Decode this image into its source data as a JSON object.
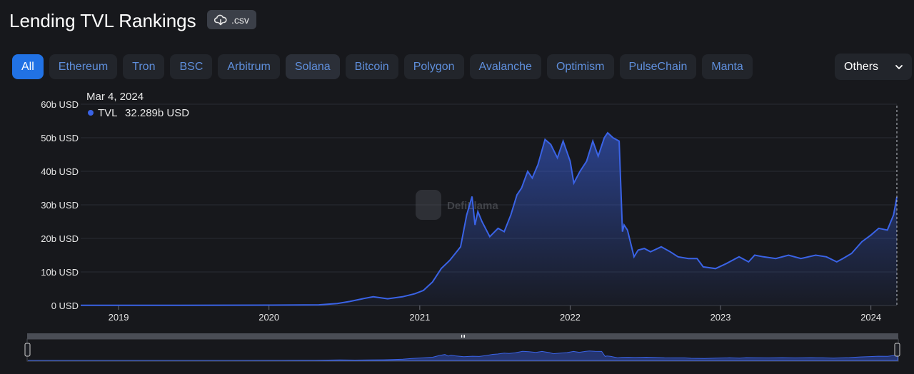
{
  "header": {
    "title": "Lending TVL Rankings",
    "csv_label": ".csv"
  },
  "chains": [
    {
      "label": "All",
      "active": true
    },
    {
      "label": "Ethereum"
    },
    {
      "label": "Tron"
    },
    {
      "label": "BSC"
    },
    {
      "label": "Arbitrum"
    },
    {
      "label": "Solana",
      "alt": true
    },
    {
      "label": "Bitcoin"
    },
    {
      "label": "Polygon"
    },
    {
      "label": "Avalanche"
    },
    {
      "label": "Optimism"
    },
    {
      "label": "PulseChain"
    },
    {
      "label": "Manta"
    }
  ],
  "others_label": "Others",
  "tooltip": {
    "date": "Mar 4, 2024",
    "series": "TVL",
    "value": "32.289b USD"
  },
  "watermark": "DefiLlama",
  "colors": {
    "line": "#3a63e6",
    "accent": "#2172e5",
    "background": "#17181c"
  },
  "chart_data": {
    "type": "area",
    "series": [
      {
        "name": "TVL",
        "x": [
          "2018-10-01",
          "2019-06-01",
          "2020-01-01",
          "2020-05-01",
          "2020-06-15",
          "2020-07-15",
          "2020-08-15",
          "2020-09-10",
          "2020-10-15",
          "2020-11-20",
          "2020-12-20",
          "2021-01-10",
          "2021-02-01",
          "2021-02-22",
          "2021-03-15",
          "2021-04-10",
          "2021-04-25",
          "2021-05-08",
          "2021-05-15",
          "2021-05-22",
          "2021-06-01",
          "2021-06-20",
          "2021-07-10",
          "2021-07-25",
          "2021-08-10",
          "2021-08-25",
          "2021-09-05",
          "2021-09-20",
          "2021-10-01",
          "2021-10-15",
          "2021-11-01",
          "2021-11-15",
          "2021-12-01",
          "2021-12-15",
          "2022-01-01",
          "2022-01-10",
          "2022-01-25",
          "2022-02-10",
          "2022-02-25",
          "2022-03-10",
          "2022-03-25",
          "2022-04-02",
          "2022-04-15",
          "2022-04-30",
          "2022-05-08",
          "2022-05-12",
          "2022-05-20",
          "2022-06-05",
          "2022-06-15",
          "2022-06-30",
          "2022-07-15",
          "2022-08-10",
          "2022-09-01",
          "2022-09-20",
          "2022-10-15",
          "2022-11-05",
          "2022-11-20",
          "2022-12-20",
          "2023-01-15",
          "2023-02-15",
          "2023-03-10",
          "2023-03-25",
          "2023-04-15",
          "2023-05-15",
          "2023-06-15",
          "2023-07-15",
          "2023-08-20",
          "2023-09-15",
          "2023-10-10",
          "2023-10-25",
          "2023-11-15",
          "2023-12-10",
          "2024-01-01",
          "2024-01-20",
          "2024-02-10",
          "2024-02-25",
          "2024-03-04"
        ],
        "values": [
          0.05,
          0.07,
          0.1,
          0.2,
          0.6,
          1.2,
          2.0,
          2.6,
          2.0,
          2.6,
          3.5,
          4.5,
          7.0,
          11.0,
          13.5,
          17.5,
          27.0,
          32.5,
          24.0,
          28.0,
          25.0,
          20.5,
          23.0,
          22.0,
          27.0,
          33.0,
          35.0,
          40.0,
          38.0,
          42.0,
          49.5,
          48.0,
          44.0,
          49.0,
          43.0,
          36.5,
          40.0,
          43.0,
          49.0,
          44.5,
          50.0,
          51.5,
          50.0,
          49.0,
          22.0,
          24.0,
          22.5,
          14.5,
          16.5,
          17.0,
          16.0,
          17.5,
          16.0,
          14.5,
          14.0,
          14.0,
          11.5,
          11.0,
          12.5,
          14.5,
          13.0,
          15.0,
          14.5,
          14.0,
          15.0,
          14.0,
          15.0,
          14.5,
          13.0,
          14.0,
          15.5,
          19.0,
          21.0,
          23.0,
          22.5,
          27.0,
          32.289
        ]
      }
    ],
    "title": "",
    "xlabel": "",
    "ylabel": "",
    "x_ticks": [
      "2019",
      "2020",
      "2021",
      "2022",
      "2023",
      "2024"
    ],
    "y_ticks": [
      "0 USD",
      "10b USD",
      "20b USD",
      "30b USD",
      "40b USD",
      "50b USD",
      "60b USD"
    ],
    "y_tick_values": [
      0,
      10,
      20,
      30,
      40,
      50,
      60
    ],
    "xlim": [
      "2018-10-01",
      "2024-03-04"
    ],
    "ylim": [
      0,
      60
    ],
    "grid": true,
    "legend": "tooltip-top-left"
  }
}
